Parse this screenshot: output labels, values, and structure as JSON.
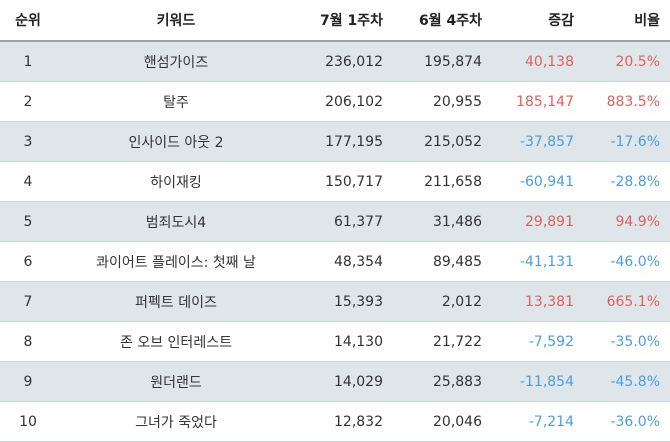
{
  "headers": {
    "rank": "순위",
    "keyword": "키워드",
    "week_current": "7월 1주차",
    "week_prev": "6월 4주차",
    "change": "증감",
    "ratio": "비율"
  },
  "rows": [
    {
      "rank": "1",
      "keyword": "핸섬가이즈",
      "current": "236,012",
      "prev": "195,874",
      "change": "40,138",
      "ratio": "20.5%",
      "trend": "up"
    },
    {
      "rank": "2",
      "keyword": "탈주",
      "current": "206,102",
      "prev": "20,955",
      "change": "185,147",
      "ratio": "883.5%",
      "trend": "up"
    },
    {
      "rank": "3",
      "keyword": "인사이드 아웃 2",
      "current": "177,195",
      "prev": "215,052",
      "change": "-37,857",
      "ratio": "-17.6%",
      "trend": "down"
    },
    {
      "rank": "4",
      "keyword": "하이재킹",
      "current": "150,717",
      "prev": "211,658",
      "change": "-60,941",
      "ratio": "-28.8%",
      "trend": "down"
    },
    {
      "rank": "5",
      "keyword": "범죄도시4",
      "current": "61,377",
      "prev": "31,486",
      "change": "29,891",
      "ratio": "94.9%",
      "trend": "up"
    },
    {
      "rank": "6",
      "keyword": "콰이어트 플레이스: 첫째 날",
      "current": "48,354",
      "prev": "89,485",
      "change": "-41,131",
      "ratio": "-46.0%",
      "trend": "down"
    },
    {
      "rank": "7",
      "keyword": "퍼펙트 데이즈",
      "current": "15,393",
      "prev": "2,012",
      "change": "13,381",
      "ratio": "665.1%",
      "trend": "up"
    },
    {
      "rank": "8",
      "keyword": "존 오브 인터레스트",
      "current": "14,130",
      "prev": "21,722",
      "change": "-7,592",
      "ratio": "-35.0%",
      "trend": "down"
    },
    {
      "rank": "9",
      "keyword": "원더랜드",
      "current": "14,029",
      "prev": "25,883",
      "change": "-11,854",
      "ratio": "-45.8%",
      "trend": "down"
    },
    {
      "rank": "10",
      "keyword": "그녀가 죽었다",
      "current": "12,832",
      "prev": "20,046",
      "change": "-7,214",
      "ratio": "-36.0%",
      "trend": "down"
    }
  ],
  "colors": {
    "up": "#e06060",
    "down": "#4a9ee0",
    "stripe": "#dfe6ea"
  }
}
